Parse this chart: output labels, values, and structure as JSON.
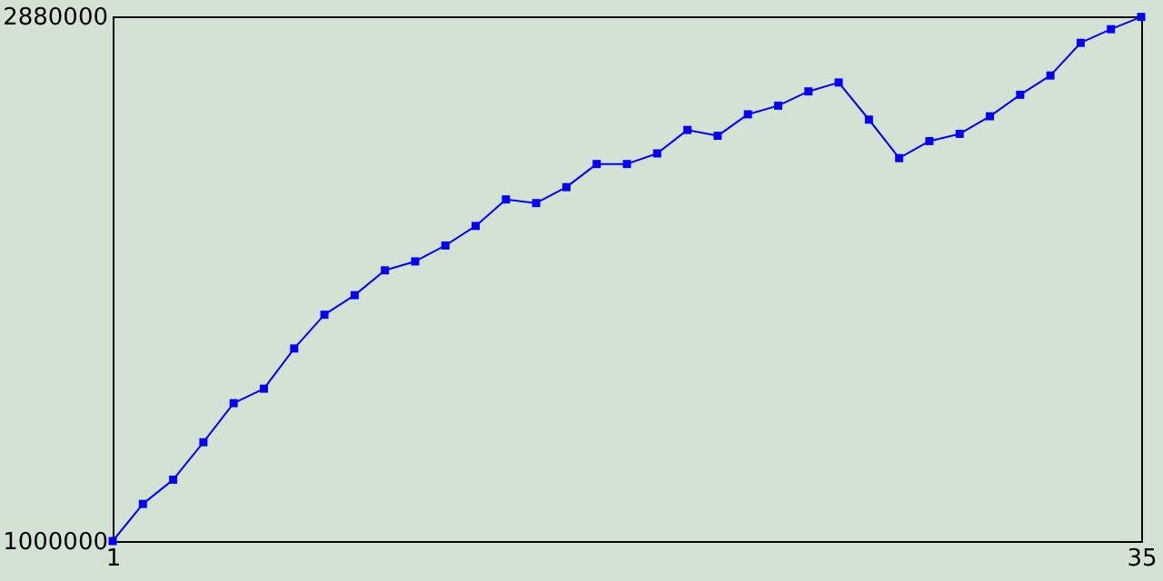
{
  "chart_data": {
    "type": "line",
    "x": [
      1,
      2,
      3,
      4,
      5,
      6,
      7,
      8,
      9,
      10,
      11,
      12,
      13,
      14,
      15,
      16,
      17,
      18,
      19,
      20,
      21,
      22,
      23,
      24,
      25,
      26,
      27,
      28,
      29,
      30,
      31,
      32,
      33,
      34,
      35
    ],
    "series": [
      {
        "color": "#0000ff",
        "values": [
          1000000,
          1133000,
          1220000,
          1354000,
          1494000,
          1546000,
          1690000,
          1811000,
          1881000,
          1970000,
          2002000,
          2059000,
          2129000,
          2224000,
          2211000,
          2268000,
          2351000,
          2351000,
          2389000,
          2473000,
          2452000,
          2529000,
          2560000,
          2611000,
          2643000,
          2510000,
          2372000,
          2433000,
          2459000,
          2522000,
          2599000,
          2668000,
          2785000,
          2834000,
          2878000
        ]
      }
    ],
    "xlim": [
      1,
      35
    ],
    "xticks": [
      1,
      35
    ],
    "ylim": [
      1000000,
      2880000
    ],
    "yticks": [
      1000000,
      2880000
    ],
    "grid": false,
    "marker": "square",
    "line_style": "solid"
  }
}
